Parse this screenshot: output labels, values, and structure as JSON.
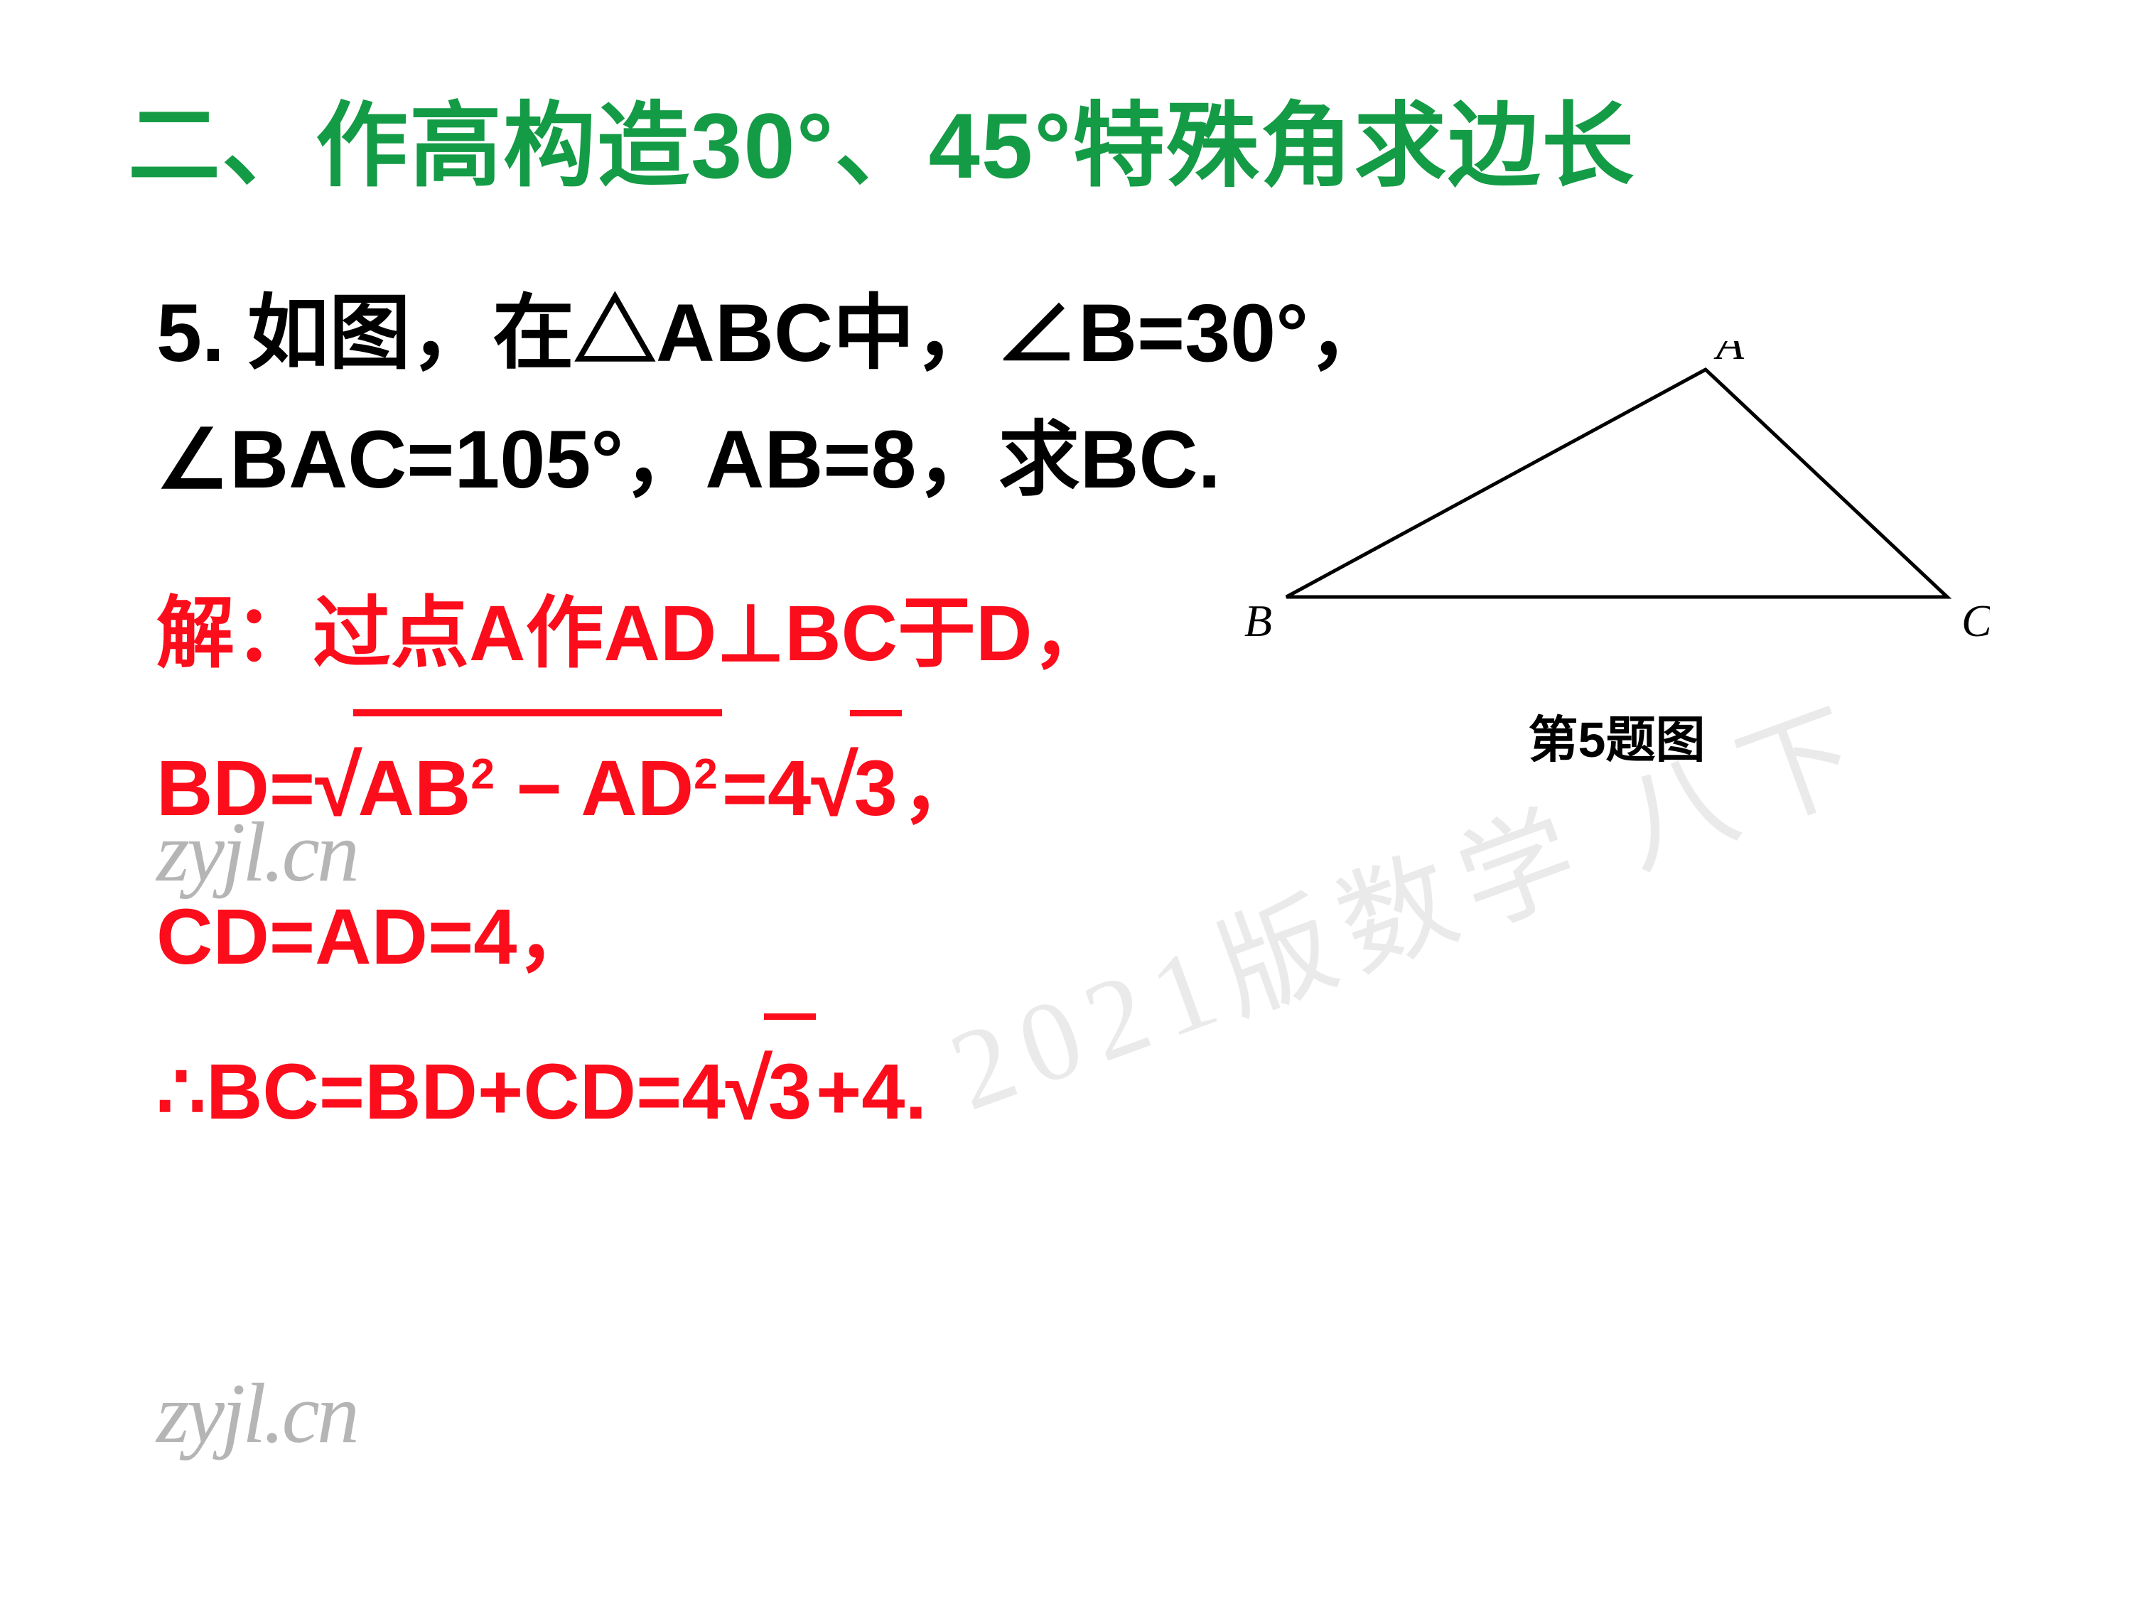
{
  "heading": {
    "text": "二、作高构造30°、45°特殊角求边长",
    "color": "#149b46"
  },
  "problem": {
    "color": "#000000",
    "line1_a": "5. 如图，在△ABC中，∠B=30°，",
    "line2_a": "∠BAC=105°，AB=8，求BC."
  },
  "solution": {
    "color": "#fc0d1b",
    "line1": "解：过点A作AD⊥BC于D，",
    "line2_pre": "BD=",
    "line2_rad_body": "AB",
    "line2_rad_exp": "2",
    "line2_rad_mid": " − AD",
    "line2_rad_exp2": "2",
    "line2_eq": "=4",
    "line2_rad2_body": "3",
    "line2_post": "，",
    "line3": "CD=AD=4，",
    "line4_pre": "∴BC=BD+CD=4",
    "line4_rad_body": "3",
    "line4_post": "+4."
  },
  "figure": {
    "label_A": "A",
    "label_B": "B",
    "label_C": "C",
    "caption": "第5题图",
    "stroke": "#000000",
    "stroke_width": 5,
    "font_family": "Times New Roman, serif",
    "label_fontsize": 64,
    "points": {
      "A": [
        650,
        40
      ],
      "B": [
        60,
        360
      ],
      "C": [
        990,
        360
      ]
    }
  },
  "watermarks": {
    "logo": "zyjl.cn",
    "diag": "2021版数学  八下",
    "logo_color": "rgba(120,120,120,0.55)",
    "diag_color": "rgba(160,160,160,0.22)"
  }
}
